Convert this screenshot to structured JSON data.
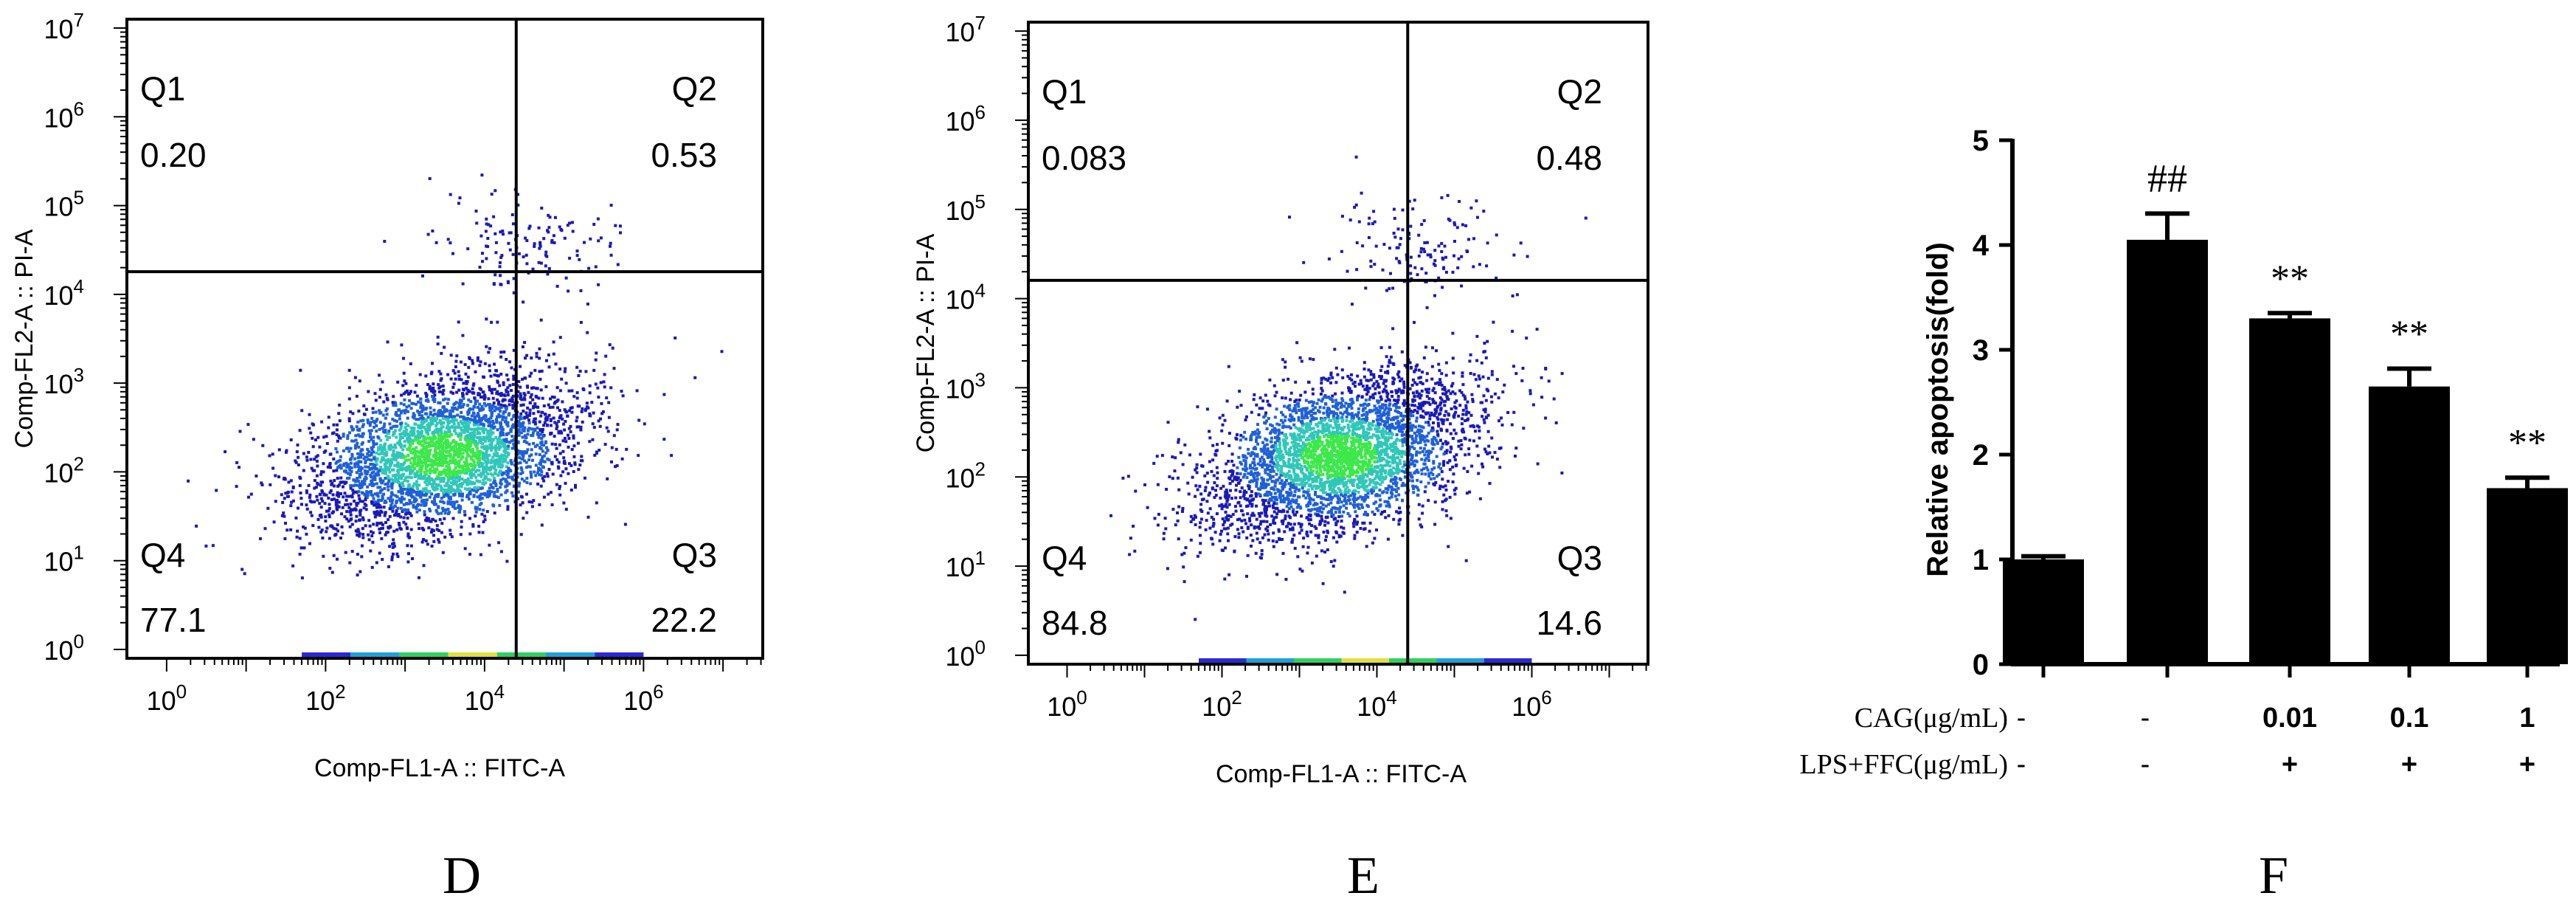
{
  "chart_data": [
    {
      "type": "scatter",
      "panel_label": "D",
      "xlabel": "Comp-FL1-A :: FITC-A",
      "ylabel": "Comp-FL2-A :: PI-A",
      "x_scale": "log",
      "y_scale": "log",
      "x_ticks": [
        {
          "value": 1,
          "base": "10",
          "exp": "0"
        },
        {
          "value": 100,
          "base": "10",
          "exp": "2"
        },
        {
          "value": 10000,
          "base": "10",
          "exp": "4"
        },
        {
          "value": 1000000,
          "base": "10",
          "exp": "6"
        }
      ],
      "y_ticks": [
        {
          "value": 1,
          "base": "10",
          "exp": "0"
        },
        {
          "value": 10,
          "base": "10",
          "exp": "1"
        },
        {
          "value": 100,
          "base": "10",
          "exp": "2"
        },
        {
          "value": 1000,
          "base": "10",
          "exp": "3"
        },
        {
          "value": 10000,
          "base": "10",
          "exp": "4"
        },
        {
          "value": 100000,
          "base": "10",
          "exp": "5"
        },
        {
          "value": 1000000,
          "base": "10",
          "exp": "6"
        },
        {
          "value": 10000000,
          "base": "10",
          "exp": "7"
        }
      ],
      "quadrants": [
        {
          "name": "Q1",
          "value": "0.20"
        },
        {
          "name": "Q2",
          "value": "0.53"
        },
        {
          "name": "Q3",
          "value": "22.2"
        },
        {
          "name": "Q4",
          "value": "77.1"
        }
      ],
      "gate_x": 25000,
      "gate_y": 18000
    },
    {
      "type": "scatter",
      "panel_label": "E",
      "xlabel": "Comp-FL1-A :: FITC-A",
      "ylabel": "Comp-FL2-A :: PI-A",
      "x_scale": "log",
      "y_scale": "log",
      "x_ticks": [
        {
          "value": 1,
          "base": "10",
          "exp": "0"
        },
        {
          "value": 100,
          "base": "10",
          "exp": "2"
        },
        {
          "value": 10000,
          "base": "10",
          "exp": "4"
        },
        {
          "value": 1000000,
          "base": "10",
          "exp": "6"
        }
      ],
      "y_ticks": [
        {
          "value": 1,
          "base": "10",
          "exp": "0"
        },
        {
          "value": 10,
          "base": "10",
          "exp": "1"
        },
        {
          "value": 100,
          "base": "10",
          "exp": "2"
        },
        {
          "value": 1000,
          "base": "10",
          "exp": "3"
        },
        {
          "value": 10000,
          "base": "10",
          "exp": "4"
        },
        {
          "value": 100000,
          "base": "10",
          "exp": "5"
        },
        {
          "value": 1000000,
          "base": "10",
          "exp": "6"
        },
        {
          "value": 10000000,
          "base": "10",
          "exp": "7"
        }
      ],
      "quadrants": [
        {
          "name": "Q1",
          "value": "0.083"
        },
        {
          "name": "Q2",
          "value": "0.48"
        },
        {
          "name": "Q3",
          "value": "14.6"
        },
        {
          "name": "Q4",
          "value": "84.8"
        }
      ],
      "gate_x": 25000,
      "gate_y": 16000
    },
    {
      "type": "bar",
      "panel_label": "F",
      "ylabel": "Relative apoptosis(fold)",
      "ylim": [
        0,
        5
      ],
      "y_ticks": [
        0,
        1,
        2,
        3,
        4,
        5
      ],
      "values": [
        1.0,
        4.05,
        3.3,
        2.65,
        1.68
      ],
      "errors": [
        0.03,
        0.25,
        0.05,
        0.17,
        0.1
      ],
      "annotations": [
        "",
        "##",
        "**",
        "**",
        "**"
      ],
      "rows": [
        {
          "label": "CAG(μg/mL)",
          "values": [
            "-",
            "-",
            "0.01",
            "0.1",
            "1"
          ]
        },
        {
          "label": "LPS+FFC(μg/mL)",
          "values": [
            "-",
            "-",
            "+",
            "+",
            "+"
          ]
        }
      ]
    }
  ]
}
